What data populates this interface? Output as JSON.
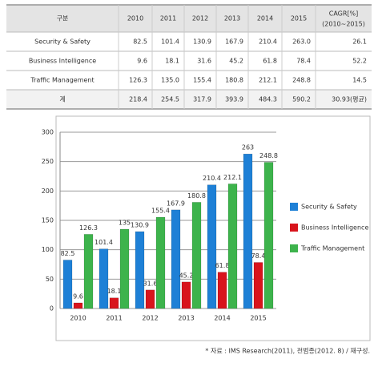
{
  "table": {
    "header": [
      "구분",
      "2010",
      "2011",
      "2012",
      "2013",
      "2014",
      "2015",
      "CAGR[%]"
    ],
    "header_sub": "(2010~2015)",
    "rows": [
      [
        "Security & Safety",
        "82.5",
        "101.4",
        "130.9",
        "167.9",
        "210.4",
        "263.0",
        "26.1"
      ],
      [
        "Business Intelligence",
        "9.6",
        "18.1",
        "31.6",
        "45.2",
        "61.8",
        "78.4",
        "52.2"
      ],
      [
        "Traffic Management",
        "126.3",
        "135.0",
        "155.4",
        "180.8",
        "212.1",
        "248.8",
        "14.5"
      ],
      [
        "계",
        "218.4",
        "254.5",
        "317.9",
        "393.9",
        "484.3",
        "590.2",
        "30.93(평균)"
      ]
    ]
  },
  "chart_data": {
    "type": "bar",
    "categories": [
      "2010",
      "2011",
      "2012",
      "2013",
      "2014",
      "2015"
    ],
    "series": [
      {
        "name": "Security & Safety",
        "color": "#1e80d6",
        "values": [
          82.5,
          101.4,
          130.9,
          167.9,
          210.4,
          263
        ]
      },
      {
        "name": "Business Intelligence",
        "color": "#d8141c",
        "values": [
          9.6,
          18.1,
          31.6,
          45.2,
          61.8,
          78.4
        ]
      },
      {
        "name": "Traffic Management",
        "color": "#3db34c",
        "values": [
          126.3,
          135,
          155.4,
          180.8,
          212.1,
          248.8
        ]
      }
    ],
    "ylim": [
      0,
      300
    ],
    "yticks": [
      0,
      50,
      100,
      150,
      200,
      250,
      300
    ],
    "grid": true,
    "legend": "right"
  },
  "footnote": "* 자료 : IMS Research(2011), 전범종(2012. 8) / 재구성."
}
